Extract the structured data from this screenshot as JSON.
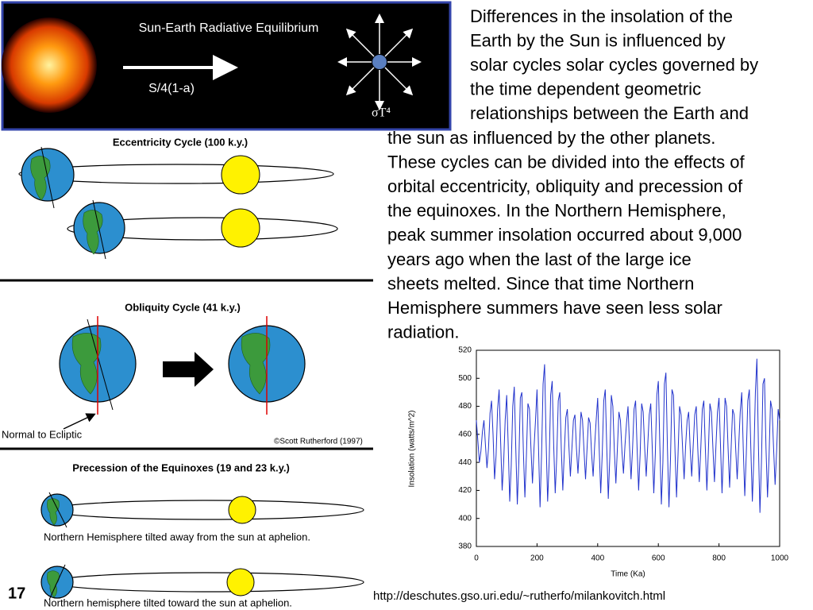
{
  "header": {
    "title": "Sun-Earth Radiative Equilibrium",
    "flux_in": "S/4(1-a)",
    "flux_out": "σT⁴"
  },
  "paragraph": [
    "Differences in the insolation of the",
    "Earth by the Sun is influenced by",
    "solar cycles solar cycles governed by",
    "the time dependent geometric",
    "relationships between the Earth and",
    "the sun as influenced by the other planets.",
    "These cycles can be divided into the effects of",
    "orbital eccentricity, obliquity and precession of",
    "the equinoxes. In the Northern Hemisphere,",
    "peak summer insolation occurred about 9,000",
    "years ago when the last of the large ice",
    "sheets melted. Since that time Northern",
    "Hemisphere summers have seen less solar",
    "radiation."
  ],
  "diagrams": {
    "eccentricity": "Eccentricity Cycle (100 k.y.)",
    "obliquity": "Obliquity Cycle (41 k.y.)",
    "normal": "Normal to Ecliptic",
    "credit": "©Scott Rutherford (1997)",
    "precession": "Precession of the Equinoxes (19 and 23 k.y.)",
    "away": "Northern Hemisphere tilted away from the sun at aphelion.",
    "toward": "Northern hemisphere tilted toward the sun at aphelion."
  },
  "slide_number": "17",
  "url": "http://deschutes.gso.uri.edu/~rutherfo/milankovitch.html",
  "chart_data": {
    "type": "line",
    "xlabel": "Time (Ka)",
    "ylabel": "Insolation (watts/m^2)",
    "color": "#2233cc",
    "xlim": [
      0,
      1000
    ],
    "ylim": [
      380,
      520
    ],
    "xticks": [
      0,
      200,
      400,
      600,
      800,
      1000
    ],
    "yticks": [
      380,
      400,
      420,
      440,
      460,
      480,
      500,
      520
    ],
    "x": [
      0,
      5,
      10,
      15,
      20,
      25,
      30,
      35,
      40,
      45,
      50,
      55,
      60,
      65,
      70,
      75,
      80,
      85,
      90,
      95,
      100,
      105,
      110,
      115,
      120,
      125,
      130,
      135,
      140,
      145,
      150,
      155,
      160,
      165,
      170,
      175,
      180,
      185,
      190,
      195,
      200,
      205,
      210,
      215,
      220,
      225,
      230,
      235,
      240,
      245,
      250,
      255,
      260,
      265,
      270,
      275,
      280,
      285,
      290,
      295,
      300,
      305,
      310,
      315,
      320,
      325,
      330,
      335,
      340,
      345,
      350,
      355,
      360,
      365,
      370,
      375,
      380,
      385,
      390,
      395,
      400,
      405,
      410,
      415,
      420,
      425,
      430,
      435,
      440,
      445,
      450,
      455,
      460,
      465,
      470,
      475,
      480,
      485,
      490,
      495,
      500,
      505,
      510,
      515,
      520,
      525,
      530,
      535,
      540,
      545,
      550,
      555,
      560,
      565,
      570,
      575,
      580,
      585,
      590,
      595,
      600,
      605,
      610,
      615,
      620,
      625,
      630,
      635,
      640,
      645,
      650,
      655,
      660,
      665,
      670,
      675,
      680,
      685,
      690,
      695,
      700,
      705,
      710,
      715,
      720,
      725,
      730,
      735,
      740,
      745,
      750,
      755,
      760,
      765,
      770,
      775,
      780,
      785,
      790,
      795,
      800,
      805,
      810,
      815,
      820,
      825,
      830,
      835,
      840,
      845,
      850,
      855,
      860,
      865,
      870,
      875,
      880,
      885,
      890,
      895,
      900,
      905,
      910,
      915,
      920,
      925,
      930,
      935,
      940,
      945,
      950,
      955,
      960,
      965,
      970,
      975,
      980,
      985,
      990,
      995,
      1000
    ],
    "values": [
      470,
      455,
      440,
      448,
      462,
      470,
      452,
      436,
      450,
      475,
      484,
      460,
      428,
      445,
      478,
      492,
      455,
      420,
      440,
      470,
      488,
      452,
      412,
      438,
      480,
      494,
      450,
      410,
      440,
      486,
      490,
      448,
      415,
      445,
      482,
      478,
      450,
      425,
      450,
      470,
      492,
      450,
      408,
      446,
      496,
      510,
      455,
      412,
      440,
      488,
      498,
      452,
      418,
      444,
      484,
      490,
      450,
      420,
      448,
      472,
      478,
      452,
      430,
      450,
      470,
      474,
      450,
      432,
      452,
      476,
      470,
      448,
      428,
      450,
      472,
      468,
      446,
      430,
      452,
      470,
      486,
      450,
      418,
      446,
      484,
      492,
      450,
      414,
      444,
      488,
      480,
      448,
      425,
      450,
      476,
      470,
      448,
      432,
      452,
      468,
      480,
      452,
      428,
      450,
      478,
      484,
      450,
      420,
      446,
      482,
      476,
      450,
      430,
      452,
      474,
      482,
      450,
      418,
      446,
      488,
      498,
      452,
      410,
      440,
      496,
      504,
      450,
      408,
      442,
      492,
      488,
      448,
      415,
      446,
      480,
      474,
      450,
      428,
      452,
      470,
      476,
      450,
      430,
      452,
      474,
      480,
      450,
      426,
      450,
      478,
      484,
      450,
      420,
      448,
      482,
      476,
      450,
      426,
      452,
      476,
      486,
      452,
      418,
      448,
      486,
      480,
      450,
      422,
      450,
      478,
      474,
      450,
      428,
      452,
      476,
      490,
      450,
      416,
      446,
      484,
      492,
      450,
      412,
      444,
      490,
      514,
      452,
      404,
      440,
      496,
      500,
      450,
      415,
      444,
      484,
      478,
      450,
      424,
      448,
      478,
      470
    ]
  }
}
